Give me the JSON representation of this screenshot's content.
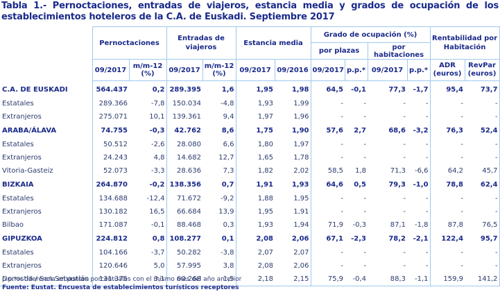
{
  "title": "Tabla 1.- Pernoctaciones, entradas de viajeros, estancia media y grados de ocupación de los establecimientos hoteleros de la C.A. de Euskadi. Septiembre 2017",
  "headers": {
    "pernoctaciones": "Pernoctaciones",
    "entradas": "Entradas de viajeros",
    "estancia": "Estancia media",
    "grado": "Grado de ocupación (%)",
    "por_plazas": "por plazas",
    "por_habitaciones": "por habitaciones",
    "rentabilidad": "Rentabilidad por Habitación",
    "sub": [
      "09/2017",
      "m/m-12 (%)",
      "09/2017",
      "m/m-12 (%)",
      "09/2017",
      "09/2016",
      "09/2017",
      "p.p.*",
      "09/2017",
      "p.p.*",
      "ADR (euros)",
      "RevPar (euros)"
    ]
  },
  "rows": [
    {
      "label": "C.A. DE EUSKADI",
      "bold": true,
      "values": [
        "564.437",
        "0,2",
        "289.395",
        "1,6",
        "1,95",
        "1,98",
        "64,5",
        "-0,1",
        "77,3",
        "-1,7",
        "95,4",
        "73,7"
      ]
    },
    {
      "label": "Estatales",
      "bold": false,
      "values": [
        "289.366",
        "-7,8",
        "150.034",
        "-4,8",
        "1,93",
        "1,99",
        "-",
        "-",
        "-",
        "-",
        "-",
        "-"
      ]
    },
    {
      "label": "Extranjeros",
      "bold": false,
      "values": [
        "275.071",
        "10,1",
        "139.361",
        "9,4",
        "1,97",
        "1,96",
        "-",
        "-",
        "-",
        "-",
        "-",
        "-"
      ]
    },
    {
      "label": "ARABA/ÁLAVA",
      "bold": true,
      "values": [
        "74.755",
        "-0,3",
        "42.762",
        "8,6",
        "1,75",
        "1,90",
        "57,6",
        "2,7",
        "68,6",
        "-3,2",
        "76,3",
        "52,4"
      ]
    },
    {
      "label": "Estatales",
      "bold": false,
      "values": [
        "50.512",
        "-2,6",
        "28.080",
        "6,6",
        "1,80",
        "1,97",
        "-",
        "-",
        "-",
        "-",
        "-",
        "-"
      ]
    },
    {
      "label": "Extranjeros",
      "bold": false,
      "values": [
        "24.243",
        "4,8",
        "14.682",
        "12,7",
        "1,65",
        "1,78",
        "-",
        "-",
        "-",
        "-",
        "-",
        "-"
      ]
    },
    {
      "label": "Vitoria-Gasteiz",
      "bold": false,
      "values": [
        "52.073",
        "-3,3",
        "28.636",
        "7,3",
        "1,82",
        "2,02",
        "58,5",
        "1,8",
        "71,3",
        "-6,6",
        "64,2",
        "45,7"
      ]
    },
    {
      "label": "BIZKAIA",
      "bold": true,
      "values": [
        "264.870",
        "-0,2",
        "138.356",
        "0,7",
        "1,91",
        "1,93",
        "64,6",
        "0,5",
        "79,3",
        "-1,0",
        "78,8",
        "62,4"
      ]
    },
    {
      "label": "Estatales",
      "bold": false,
      "values": [
        "134.688",
        "-12,4",
        "71.672",
        "-9,2",
        "1,88",
        "1,95",
        "-",
        "-",
        "-",
        "-",
        "-",
        "-"
      ]
    },
    {
      "label": "Extranjeros",
      "bold": false,
      "values": [
        "130.182",
        "16,5",
        "66.684",
        "13,9",
        "1,95",
        "1,91",
        "-",
        "-",
        "-",
        "-",
        "-",
        "-"
      ]
    },
    {
      "label": "Bilbao",
      "bold": false,
      "values": [
        "171.087",
        "-0,1",
        "88.468",
        "0,3",
        "1,93",
        "1,94",
        "71,9",
        "-0,3",
        "87,1",
        "-1,8",
        "87,8",
        "76,5"
      ]
    },
    {
      "label": "GIPUZKOA",
      "bold": true,
      "values": [
        "224.812",
        "0,8",
        "108.277",
        "0,1",
        "2,08",
        "2,06",
        "67,1",
        "-2,3",
        "78,2",
        "-2,1",
        "122,4",
        "95,7"
      ]
    },
    {
      "label": "Estatales",
      "bold": false,
      "values": [
        "104.166",
        "-3,7",
        "50.282",
        "-3,8",
        "2,07",
        "2,07",
        "-",
        "-",
        "-",
        "-",
        "-",
        "-"
      ]
    },
    {
      "label": "Extranjeros",
      "bold": false,
      "values": [
        "120.646",
        "5,0",
        "57.995",
        "3,8",
        "2,08",
        "2,06",
        "-",
        "-",
        "-",
        "-",
        "-",
        "-"
      ]
    },
    {
      "label": "Donostia / San Sebastián",
      "bold": false,
      "values": [
        "131.375",
        "3,1",
        "60.268",
        "1,5",
        "2,18",
        "2,15",
        "75,9",
        "-0,4",
        "88,3",
        "-1,1",
        "159,9",
        "141,2"
      ]
    }
  ],
  "footnote": "p.p.*= diferencia en puntos porcentuales con el mismo mes del año anterior",
  "source": "Fuente: Eustat. Encuesta de establecimientos turísticos receptores",
  "colors": {
    "title": "#1a2a8a",
    "border": "#9ec8f0",
    "text": "#2b3a6e"
  }
}
